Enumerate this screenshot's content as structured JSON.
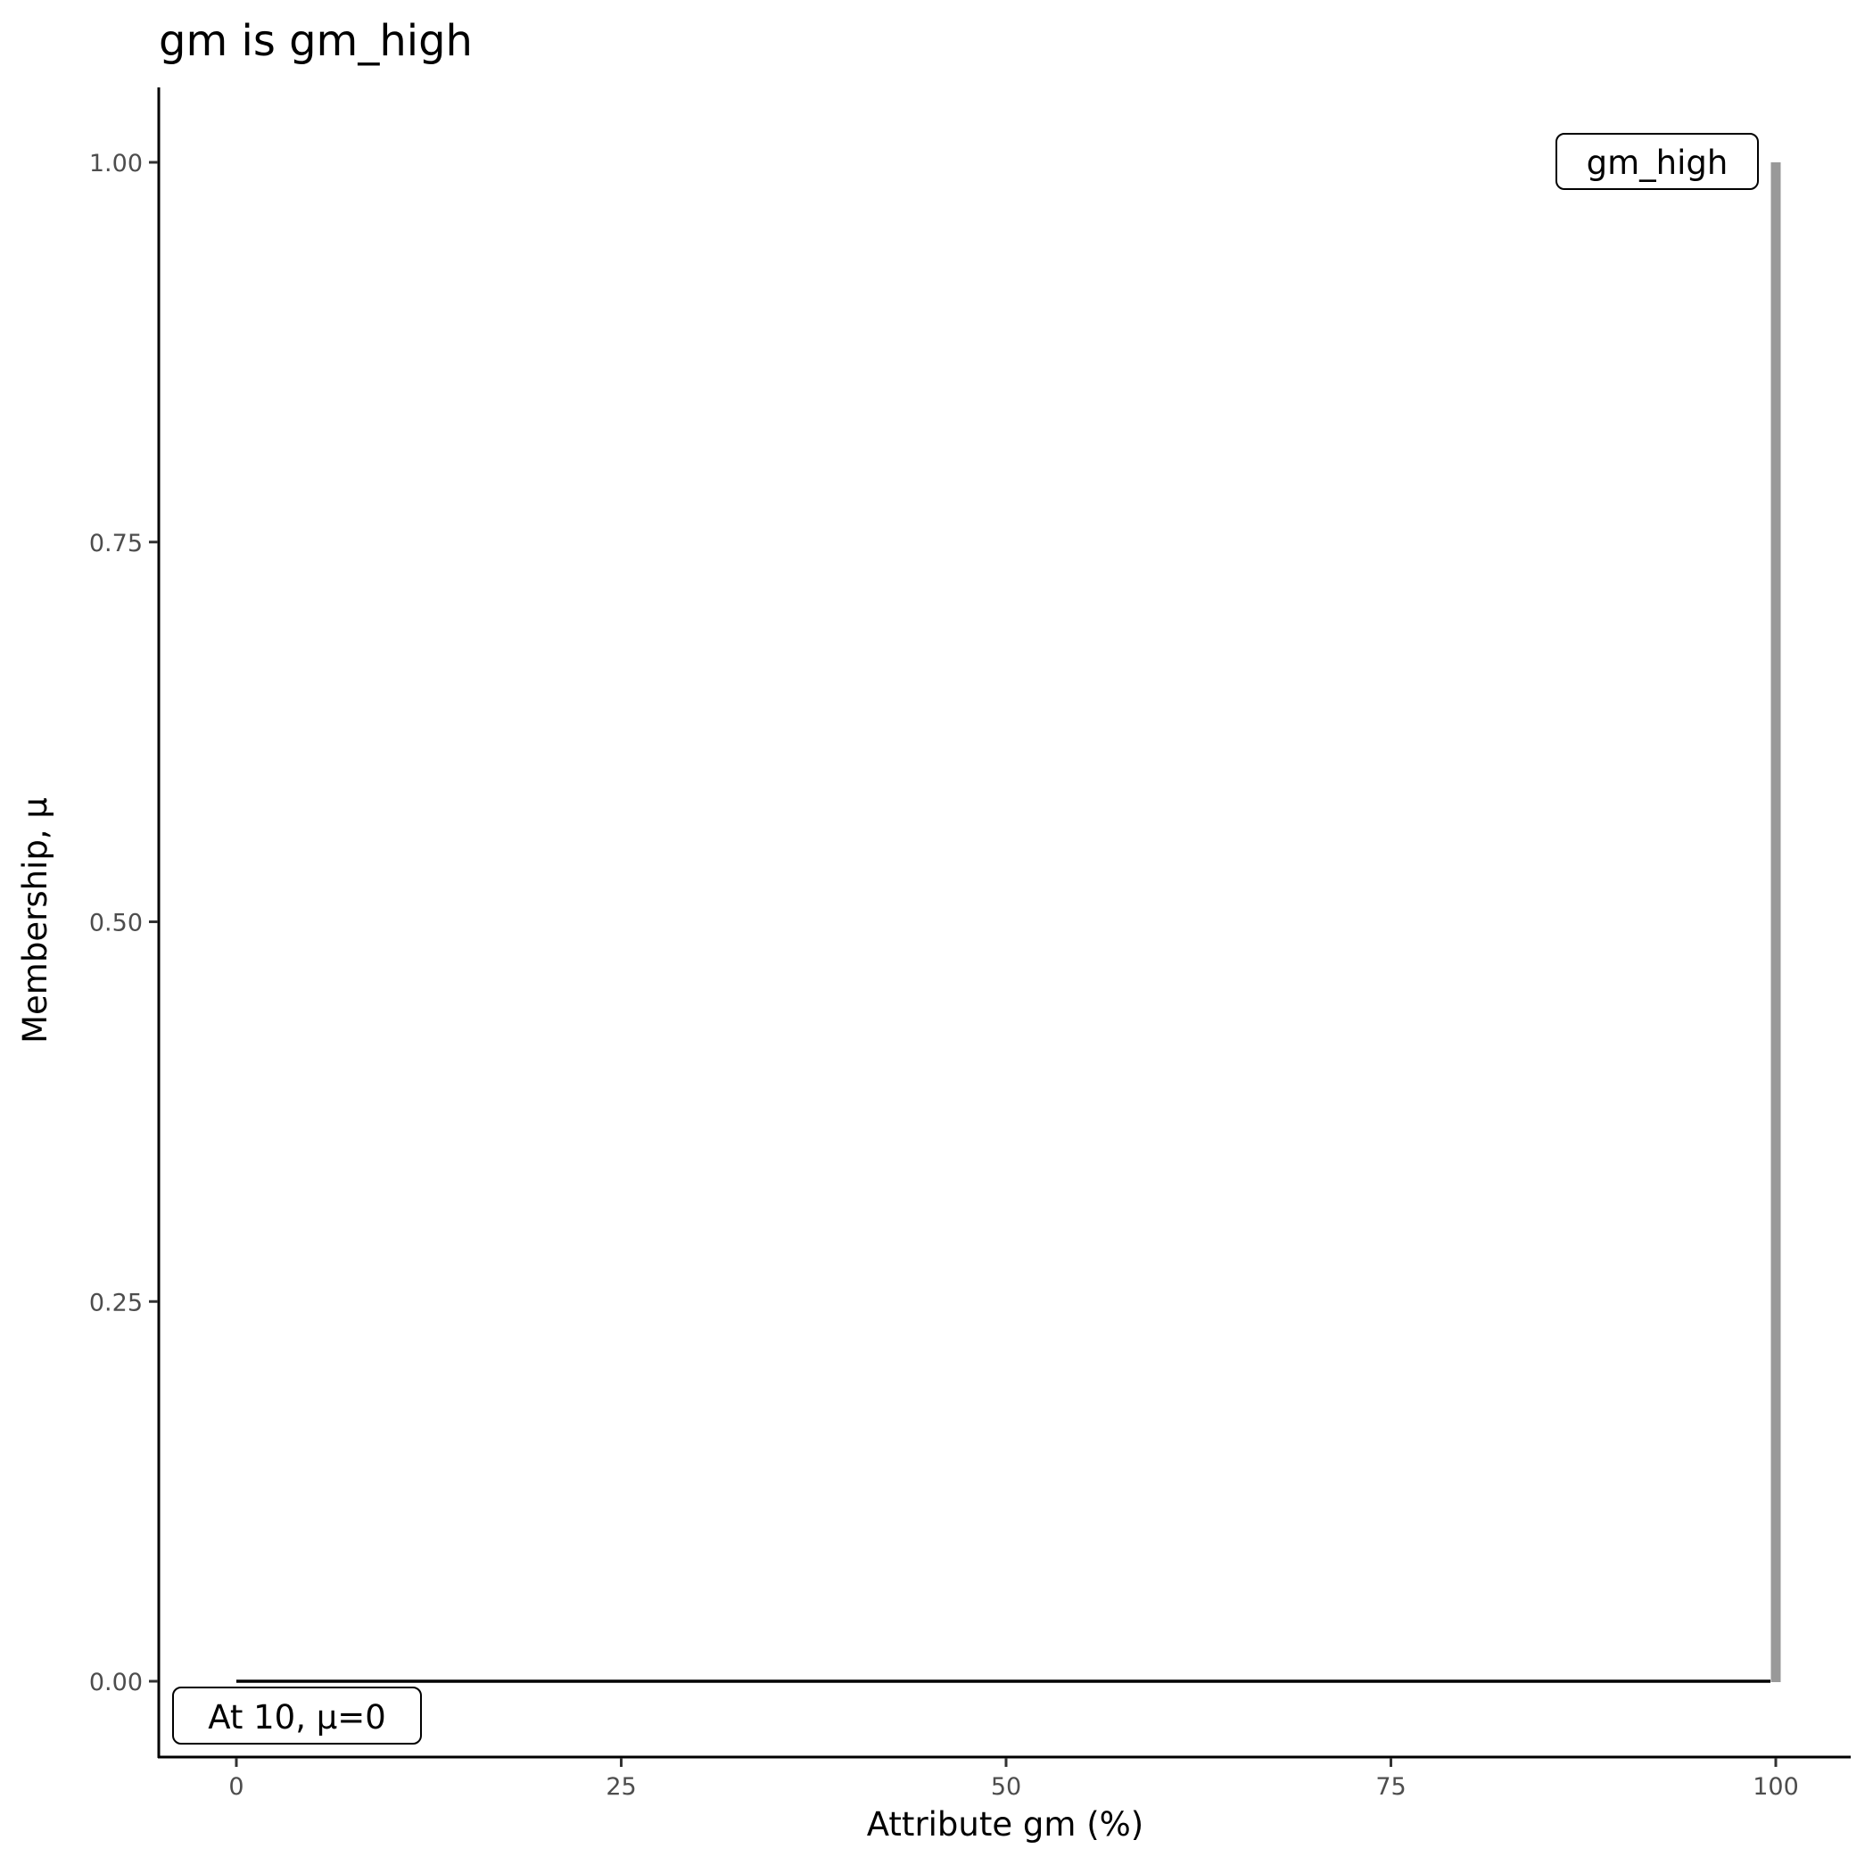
{
  "chart_data": {
    "type": "line",
    "title": "gm is gm_high",
    "xlabel": "Attribute gm (%)",
    "ylabel": "Membership, μ",
    "xlim": [
      -5,
      105
    ],
    "ylim": [
      -0.05,
      1.05
    ],
    "x_ticks": [
      0,
      25,
      50,
      75,
      100
    ],
    "x_tick_labels": [
      "0",
      "25",
      "50",
      "75",
      "100"
    ],
    "y_ticks": [
      0,
      0.25,
      0.5,
      0.75,
      1
    ],
    "y_tick_labels": [
      "0.00",
      "0.25",
      "0.50",
      "0.75",
      "1.00"
    ],
    "grid": false,
    "series": [
      {
        "x": [
          0,
          100
        ],
        "y": [
          0,
          0
        ],
        "color": "#000000"
      },
      {
        "x": [
          100,
          100
        ],
        "y": [
          0,
          1
        ],
        "color": "#999999"
      }
    ],
    "annotations": [
      {
        "text": "gm_high",
        "x": 100,
        "y": 1,
        "anchor": "right"
      },
      {
        "text": "At 10, μ=0",
        "x": 0,
        "y": 0,
        "anchor": "below"
      }
    ]
  }
}
